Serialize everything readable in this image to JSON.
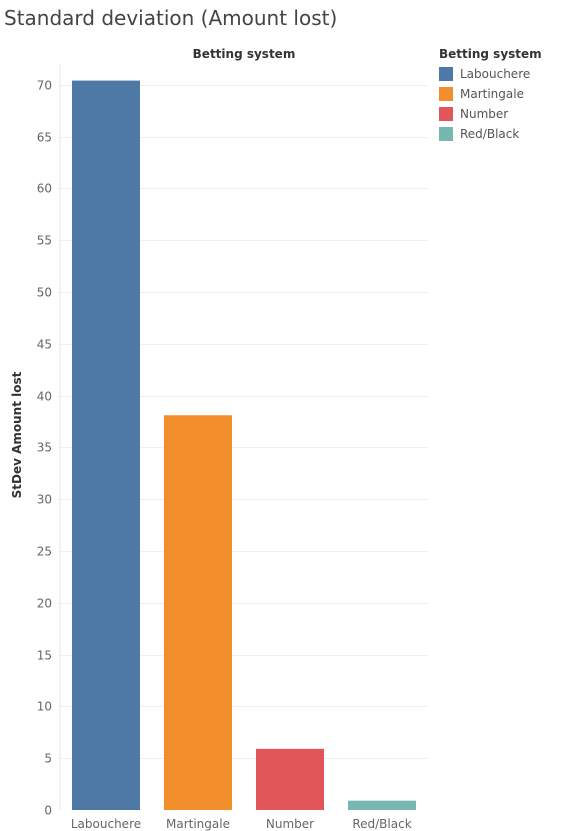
{
  "chart_data": {
    "type": "bar",
    "title": "Standard deviation (Amount lost)",
    "header": "Betting system",
    "ylabel": "StDev Amount lost",
    "xlabel": "",
    "categories": [
      "Labouchere",
      "Martingale",
      "Number",
      "Red/Black"
    ],
    "values": [
      70.4,
      38.1,
      5.9,
      0.9
    ],
    "colors": [
      "#4e79a7",
      "#f28e2b",
      "#e15759",
      "#76b7b2"
    ],
    "ylim": [
      0,
      72
    ],
    "yticks": [
      0,
      5,
      10,
      15,
      20,
      25,
      30,
      35,
      40,
      45,
      50,
      55,
      60,
      65,
      70
    ],
    "grid": true,
    "legend_position": "top-right",
    "legend": {
      "title": "Betting system",
      "items": [
        "Labouchere",
        "Martingale",
        "Number",
        "Red/Black"
      ]
    }
  }
}
